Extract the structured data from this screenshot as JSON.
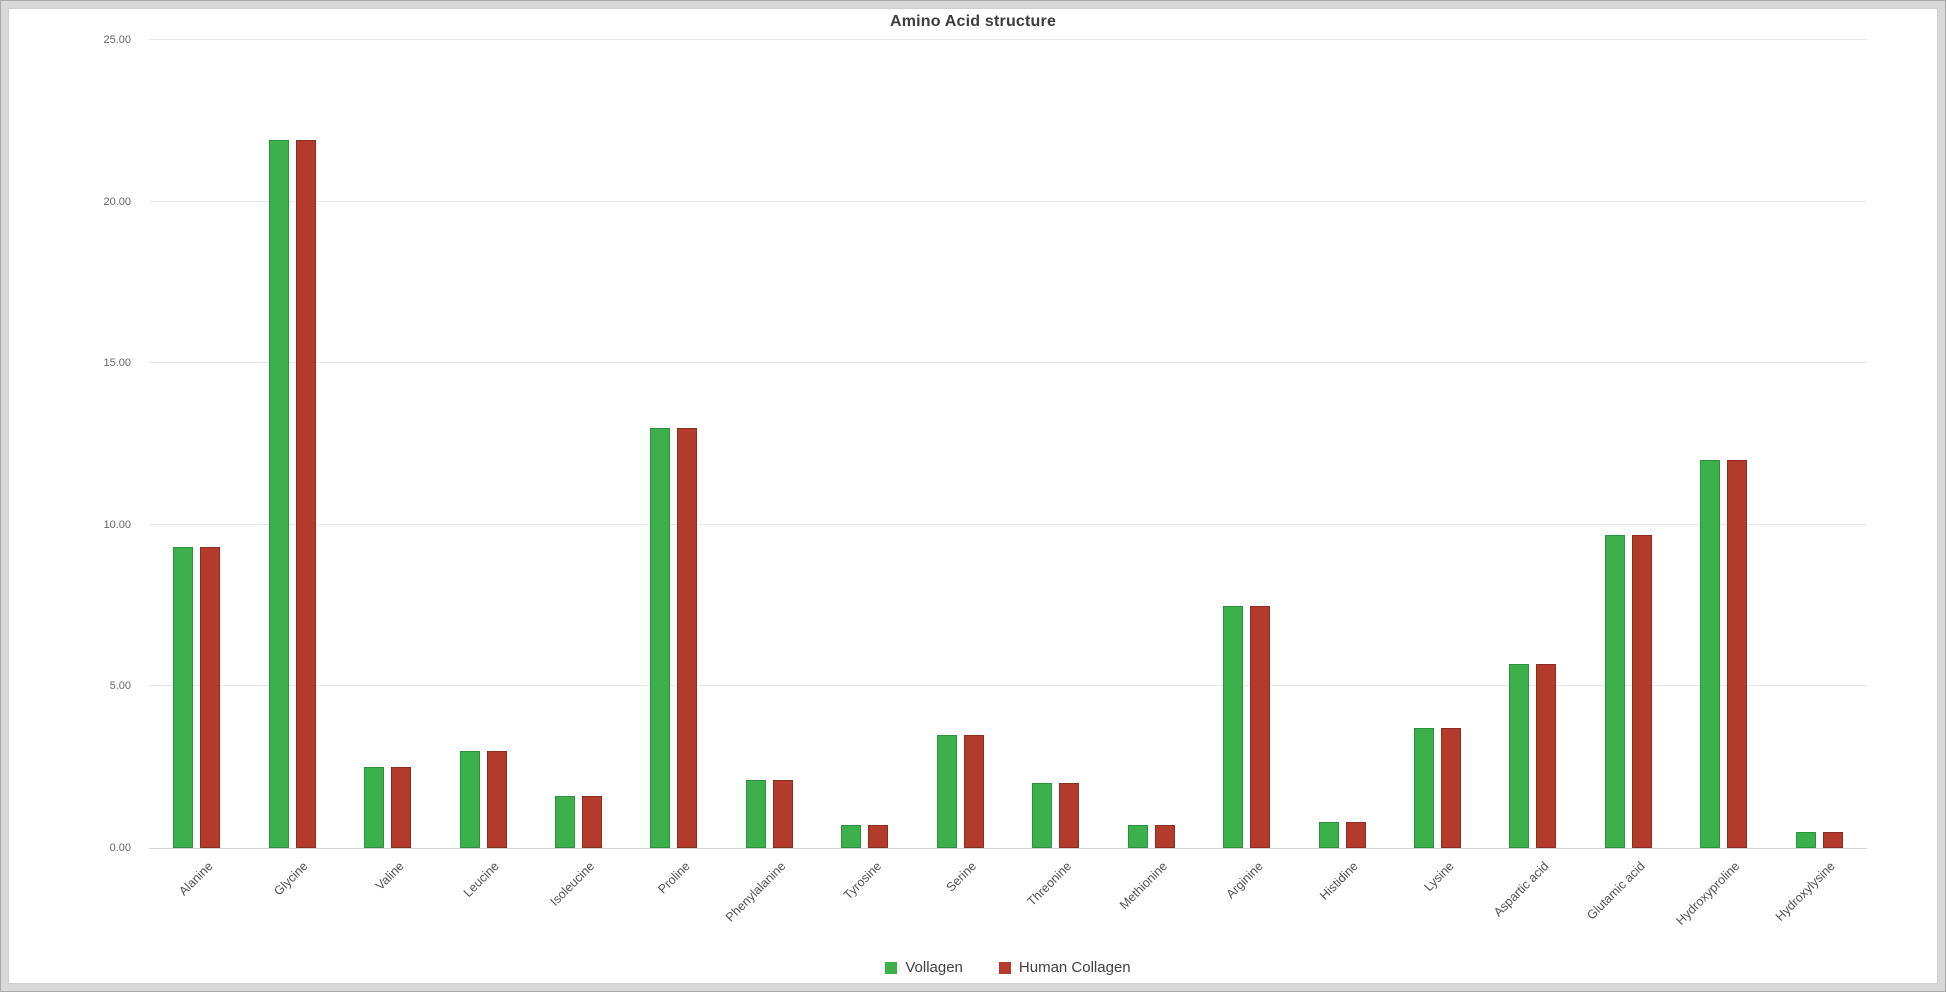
{
  "chart_data": {
    "type": "bar",
    "title": "Amino Acid structure",
    "categories": [
      "Alanine",
      "Glycine",
      "Valine",
      "Leucine",
      "Isoleucine",
      "Proline",
      "Phenylalanine",
      "Tyrosine",
      "Serine",
      "Threonine",
      "Methionine",
      "Arginine",
      "Histidine",
      "Lysine",
      "Aspartic acid",
      "Glutamic acid",
      "Hydroxyproline",
      "Hydroxylysine"
    ],
    "series": [
      {
        "name": "Vollagen",
        "color": "#3cb04a",
        "border_color": "#2e9140",
        "values": [
          9.3,
          21.9,
          2.5,
          3.0,
          1.6,
          13.0,
          2.1,
          0.7,
          3.5,
          2.0,
          0.7,
          7.5,
          0.8,
          3.7,
          5.7,
          9.7,
          12.0,
          0.5
        ]
      },
      {
        "name": "Human Collagen",
        "color": "#b23b2c",
        "border_color": "#8e2d1f",
        "values": [
          9.3,
          21.9,
          2.5,
          3.0,
          1.6,
          13.0,
          2.1,
          0.7,
          3.5,
          2.0,
          0.7,
          7.5,
          0.8,
          3.7,
          5.7,
          9.7,
          12.0,
          0.5
        ]
      }
    ],
    "xlabel": "",
    "ylabel": "",
    "ylim": [
      0,
      25
    ],
    "ytick_step": 5,
    "ytick_labels": [
      "0.00",
      "5.00",
      "10.00",
      "15.00",
      "20.00",
      "25.00"
    ],
    "grid": true,
    "legend_position": "bottom"
  }
}
